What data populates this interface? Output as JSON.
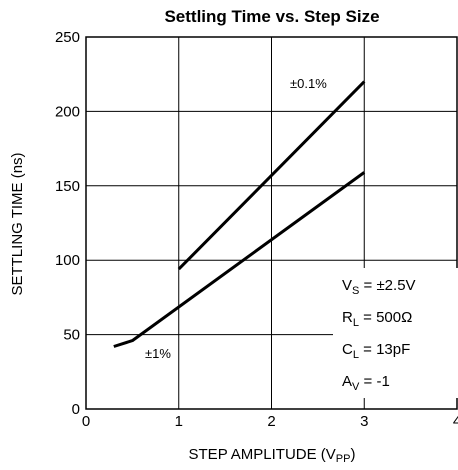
{
  "chart_data": {
    "type": "line",
    "title": "Settling Time vs. Step Size",
    "xlabel": "STEP AMPLITUDE (V",
    "xlabel_sub": "PP",
    "xlabel_end": ")",
    "ylabel": "SETTLING TIME (ns)",
    "xlim": [
      0,
      4
    ],
    "ylim": [
      0,
      250
    ],
    "x_ticks": [
      0,
      1,
      2,
      3,
      4
    ],
    "y_ticks": [
      0,
      50,
      100,
      150,
      200,
      250
    ],
    "grid": true,
    "series": [
      {
        "name": "±0.1%",
        "x": [
          1.0,
          3.0
        ],
        "y": [
          94,
          220
        ]
      },
      {
        "name": "±1%",
        "x": [
          0.3,
          0.5,
          3.0
        ],
        "y": [
          42,
          46,
          159
        ]
      }
    ],
    "conditions": [
      {
        "main": "V",
        "sub": "S",
        "rest": " = ±2.5V"
      },
      {
        "main": "R",
        "sub": "L",
        "rest": " = 500Ω"
      },
      {
        "main": "C",
        "sub": "L",
        "rest": " = 13pF"
      },
      {
        "main": "A",
        "sub": "V",
        "rest": " = -1"
      }
    ]
  }
}
